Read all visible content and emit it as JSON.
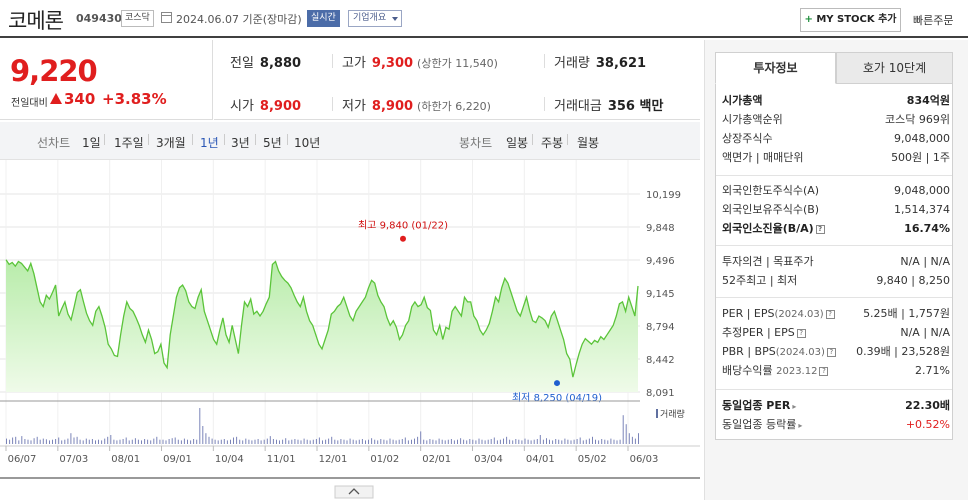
{
  "header": {
    "stock_name": "코메론",
    "stock_code": "049430",
    "market": "코스닥",
    "date_text": "2024.06.07 기준(장마감)",
    "realtime_label": "실시간",
    "company_info_label": "기업개요",
    "mystock_label": "MY STOCK 추가",
    "mystock_plus": "+",
    "quick_order_label": "빠른주문"
  },
  "price": {
    "current": "9,220",
    "change_label": "전일대비",
    "change_amount": "340",
    "change_percent": "+3.83%",
    "direction": "up",
    "up_color": "#e01e1e"
  },
  "stats": {
    "prev_close": {
      "label": "전일",
      "value": "8,880"
    },
    "high": {
      "label": "고가",
      "value": "9,300",
      "sub": "(상한가 11,540)"
    },
    "volume": {
      "label": "거래량",
      "value": "38,621"
    },
    "open": {
      "label": "시가",
      "value": "8,900"
    },
    "low": {
      "label": "저가",
      "value": "8,900",
      "sub": "(하한가 6,220)"
    },
    "trade_value": {
      "label": "거래대금",
      "value": "356 백만"
    }
  },
  "toolbar": {
    "line_chart_label": "선차트",
    "periods": [
      "1일",
      "1주일",
      "3개월",
      "1년",
      "3년",
      "5년",
      "10년"
    ],
    "active_period": "1년",
    "candle_chart_label": "봉차트",
    "candle_periods": [
      "일봉",
      "주봉",
      "월봉"
    ]
  },
  "chart_data": {
    "type": "area",
    "y_ticks": [
      "10,199",
      "9,848",
      "9,496",
      "9,145",
      "8,794",
      "8,442",
      "8,091"
    ],
    "ylim": [
      8091,
      10199
    ],
    "x_ticks": [
      "06/07",
      "07/03",
      "08/01",
      "09/01",
      "10/04",
      "11/01",
      "12/01",
      "01/02",
      "02/01",
      "03/04",
      "04/01",
      "05/02",
      "06/03"
    ],
    "series": [
      {
        "values": [
          9500,
          9450,
          9470,
          9430,
          9480,
          9460,
          9420,
          9380,
          9460,
          9350,
          9200,
          9050,
          9000,
          9120,
          9080,
          9150,
          9230,
          8900,
          8980,
          9050,
          8920,
          8860,
          9000,
          9150,
          9180,
          9050,
          8930,
          8850,
          8800,
          8950,
          9000,
          8900,
          8780,
          8600,
          8550,
          8480,
          8470,
          8700,
          8900,
          9050,
          8980,
          8950,
          8880,
          8800,
          8700,
          8620,
          8750,
          8650,
          8500,
          8520,
          8600,
          8400,
          8350,
          8700,
          8900,
          9100,
          9200,
          9230,
          9170,
          9050,
          9000,
          8980,
          9100,
          9180,
          8950,
          8850,
          8750,
          8650,
          8600,
          8750,
          8880,
          8700,
          8620,
          8800,
          8650,
          8500,
          8800,
          9050,
          9000,
          9080,
          8920,
          8950,
          8900,
          8950,
          9030,
          9100,
          9450,
          9480,
          9380,
          9320,
          9280,
          9250,
          9200,
          9120,
          9050,
          9000,
          9100,
          8950,
          8850,
          8800,
          8700,
          8600,
          8550,
          8650,
          8750,
          8920,
          8950,
          9000,
          9030,
          9100,
          9000,
          8900,
          8850,
          8950,
          9000,
          9050,
          9100,
          9200,
          9280,
          9250,
          9120,
          9050,
          9000,
          8880,
          8800,
          8850,
          8780,
          8650,
          8700,
          8800,
          8850,
          9000,
          9050,
          9000,
          9020,
          9100,
          8990,
          8960,
          8750,
          8700,
          8800,
          8650,
          8780,
          8760,
          8950,
          9000,
          8950,
          8900,
          9100,
          9050,
          9050,
          8900,
          8850,
          8750,
          8700,
          8750,
          8820,
          8950,
          9100,
          9050,
          9200,
          9300,
          9250,
          9150,
          9050,
          8950,
          8900,
          9000,
          9100,
          8960,
          8850,
          8830,
          8900,
          8880,
          8850,
          8780,
          8900,
          8950,
          8850,
          8750,
          8650,
          8500,
          8440,
          8250,
          8380,
          8500,
          8600,
          8660,
          8630,
          8600,
          8640,
          8620,
          8680,
          8650,
          8700,
          8750,
          8800,
          8900,
          9030,
          9050,
          8950,
          9100,
          9000,
          8900,
          9220
        ]
      }
    ],
    "annotations": [
      {
        "label": "최고",
        "value": "9,840",
        "date": "(01/22)"
      },
      {
        "label": "최저",
        "value": "8,250",
        "date": "(04/19)"
      }
    ],
    "volume_legend": "거래량",
    "volume_values": [
      0.15,
      0.12,
      0.18,
      0.2,
      0.1,
      0.22,
      0.14,
      0.12,
      0.1,
      0.16,
      0.2,
      0.12,
      0.15,
      0.13,
      0.1,
      0.12,
      0.14,
      0.18,
      0.1,
      0.12,
      0.15,
      0.3,
      0.18,
      0.2,
      0.12,
      0.1,
      0.15,
      0.12,
      0.14,
      0.1,
      0.12,
      0.1,
      0.15,
      0.2,
      0.25,
      0.12,
      0.1,
      0.12,
      0.14,
      0.18,
      0.1,
      0.12,
      0.16,
      0.12,
      0.1,
      0.14,
      0.12,
      0.1,
      0.15,
      0.2,
      0.12,
      0.12,
      0.1,
      0.14,
      0.16,
      0.18,
      0.12,
      0.1,
      0.15,
      0.12,
      0.1,
      0.14,
      0.12,
      1.0,
      0.5,
      0.3,
      0.2,
      0.15,
      0.12,
      0.1,
      0.12,
      0.14,
      0.1,
      0.12,
      0.18,
      0.2,
      0.12,
      0.1,
      0.15,
      0.12,
      0.1,
      0.12,
      0.14,
      0.1,
      0.12,
      0.15,
      0.22,
      0.14,
      0.12,
      0.1,
      0.12,
      0.16,
      0.1,
      0.12,
      0.14,
      0.12,
      0.1,
      0.15,
      0.12,
      0.1,
      0.12,
      0.14,
      0.18,
      0.1,
      0.12,
      0.15,
      0.2,
      0.12,
      0.1,
      0.14,
      0.12,
      0.1,
      0.15,
      0.12,
      0.1,
      0.12,
      0.14,
      0.1,
      0.12,
      0.16,
      0.12,
      0.1,
      0.14,
      0.12,
      0.1,
      0.15,
      0.12,
      0.1,
      0.12,
      0.14,
      0.18,
      0.1,
      0.12,
      0.15,
      0.2,
      0.35,
      0.12,
      0.1,
      0.14,
      0.12,
      0.1,
      0.15,
      0.12,
      0.1,
      0.12,
      0.14,
      0.1,
      0.12,
      0.16,
      0.12,
      0.1,
      0.14,
      0.12,
      0.1,
      0.15,
      0.12,
      0.1,
      0.12,
      0.14,
      0.18,
      0.1,
      0.12,
      0.15,
      0.2,
      0.12,
      0.1,
      0.14,
      0.12,
      0.1,
      0.15,
      0.12,
      0.1,
      0.12,
      0.14,
      0.25,
      0.12,
      0.16,
      0.12,
      0.1,
      0.14,
      0.12,
      0.1,
      0.15,
      0.12,
      0.1,
      0.12,
      0.14,
      0.18,
      0.1,
      0.12,
      0.15,
      0.2,
      0.12,
      0.1,
      0.14,
      0.12,
      0.1,
      0.15,
      0.12,
      0.1,
      0.12,
      0.8,
      0.55,
      0.3,
      0.2,
      0.15,
      0.3
    ]
  },
  "panel": {
    "tab_invest": "투자정보",
    "tab_orderbook": "호가 10단계",
    "market_cap": {
      "label": "시가총액",
      "value": "834억원"
    },
    "market_cap_rank": {
      "label": "시가총액순위",
      "value": "코스닥 969위"
    },
    "listed_shares": {
      "label": "상장주식수",
      "value": "9,048,000"
    },
    "face_value": {
      "label": "액면가 | 매매단위",
      "value": "500원 | 1주"
    },
    "foreign_limit": {
      "label": "외국인한도주식수(A)",
      "value": "9,048,000"
    },
    "foreign_held": {
      "label": "외국인보유주식수(B)",
      "value": "1,514,374"
    },
    "foreign_ratio": {
      "label": "외국인소진율(B/A)",
      "value": "16.74%"
    },
    "opinion": {
      "label": "투자의견 | 목표주가",
      "value": "N/A | N/A"
    },
    "week52": {
      "label": "52주최고 | 최저",
      "value": "9,840 | 8,250"
    },
    "per_eps": {
      "label": "PER | EPS",
      "period": "(2024.03)",
      "value": "5.25배 | 1,757원"
    },
    "est_per_eps": {
      "label": "추정PER | EPS",
      "value": "N/A | N/A"
    },
    "pbr_bps": {
      "label": "PBR | BPS",
      "period": "(2024.03)",
      "value": "0.39배 | 23,528원"
    },
    "dividend": {
      "label": "배당수익률",
      "period": "2023.12",
      "value": "2.71%"
    },
    "industry_per": {
      "label": "동일업종 PER",
      "value": "22.30배"
    },
    "industry_change": {
      "label": "동일업종 등락률",
      "value": "+0.52%"
    }
  }
}
